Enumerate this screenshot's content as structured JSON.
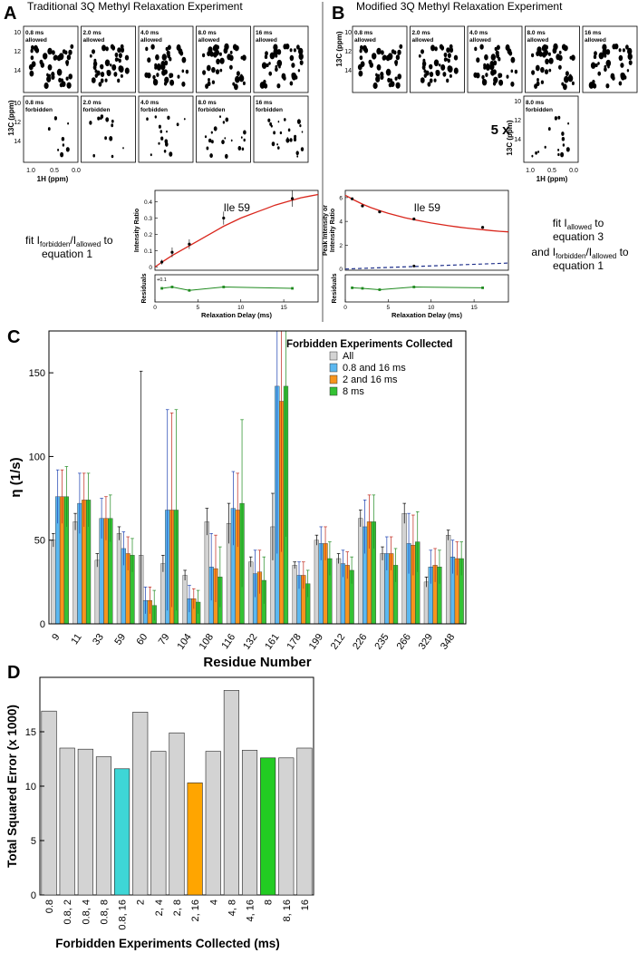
{
  "panels": {
    "a": {
      "letter": "A",
      "title": "Traditional 3Q Methyl Relaxation Experiment",
      "spectra_allowed": [
        {
          "time": "0.8 ms",
          "type": "allowed"
        },
        {
          "time": "2.0 ms",
          "type": "allowed"
        },
        {
          "time": "4.0 ms",
          "type": "allowed"
        },
        {
          "time": "8.0 ms",
          "type": "allowed"
        },
        {
          "time": "16 ms",
          "type": "allowed"
        }
      ],
      "spectra_forbidden": [
        {
          "time": "0.8 ms",
          "type": "forbidden"
        },
        {
          "time": "2.0 ms",
          "type": "forbidden"
        },
        {
          "time": "4.0 ms",
          "type": "forbidden"
        },
        {
          "time": "8.0 ms",
          "type": "forbidden"
        },
        {
          "time": "16 ms",
          "type": "forbidden"
        }
      ],
      "c_axis_label": "13C (ppm)",
      "c_ticks": [
        "10",
        "12",
        "14"
      ],
      "h_axis_label": "1H (ppm)",
      "h_ticks": [
        "1.0",
        "0.5",
        "0.0"
      ],
      "fit_text_1": "fit I",
      "fit_sub_1": "forbidden",
      "fit_text_2": "/I",
      "fit_sub_2": "allowed",
      "fit_text_3": " to",
      "fit_text_4": "equation 1",
      "plot_title": "Ile 59",
      "plot_ylabel": "Intensity Ratio",
      "plot_yticks": [
        "0",
        "0.1",
        "0.2",
        "0.3",
        "0.4"
      ],
      "res_ylabel": "Residuals",
      "res_tick": "+0.1",
      "xticks": [
        "0",
        "5",
        "10",
        "15"
      ],
      "xlabel": "Relaxation Delay (ms)"
    },
    "b": {
      "letter": "B",
      "title": "Modified 3Q Methyl Relaxation Experiment",
      "spectra_allowed": [
        {
          "time": "0.8 ms",
          "type": "allowed"
        },
        {
          "time": "2.0 ms",
          "type": "allowed"
        },
        {
          "time": "4.0 ms",
          "type": "allowed"
        },
        {
          "time": "8.0 ms",
          "type": "allowed"
        },
        {
          "time": "16 ms",
          "type": "allowed"
        }
      ],
      "spectra_forbidden": [
        {
          "time": "8.0 ms",
          "type": "forbidden"
        }
      ],
      "multiplier": "5 x",
      "c_axis_label": "13C (ppm)",
      "c_ticks": [
        "10",
        "12",
        "14"
      ],
      "h_axis_label": "1H (ppm)",
      "h_ticks": [
        "1.0",
        "0.5",
        "0.0"
      ],
      "fit_line_1a": "fit I",
      "fit_line_1b": "allowed",
      "fit_line_1c": " to",
      "fit_line_2": "equation 3",
      "fit_line_3a": "and I",
      "fit_line_3b": "forbidden",
      "fit_line_3c": "/I",
      "fit_line_3d": "allowed",
      "fit_line_3e": " to",
      "fit_line_4": "equation 1",
      "plot_title": "Ile 59",
      "plot_ylabel_1": "Peak Intensity or",
      "plot_ylabel_2": "Intensity Ratio",
      "plot_yticks": [
        "0",
        "2",
        "4",
        "6"
      ],
      "res_ylabel": "Residuals",
      "xticks": [
        "0",
        "5",
        "10",
        "15"
      ],
      "xlabel": "Relaxation Delay (ms)"
    },
    "c": {
      "letter": "C"
    },
    "d": {
      "letter": "D"
    }
  },
  "colors": {
    "all": "#d3d3d3",
    "s08_16": "#5cb8f0",
    "s2_16": "#f7941d",
    "s8": "#34c234",
    "fit_red": "#d9261c",
    "fit_blue": "#1e2f8a",
    "residual_green": "#1f8a1f",
    "d_highlight_cyan": "#3ed6d6",
    "d_highlight_orange": "#ffa500",
    "d_highlight_green": "#22cc22"
  },
  "chart_data": [
    {
      "type": "line",
      "title": "Ile 59",
      "panel": "A",
      "xlabel": "Relaxation Delay (ms)",
      "ylabel": "Intensity Ratio",
      "xlim": [
        0,
        19
      ],
      "ylim": [
        -0.02,
        0.47
      ],
      "points": {
        "x": [
          0.8,
          2,
          4,
          8,
          16
        ],
        "y": [
          0.03,
          0.09,
          0.14,
          0.3,
          0.42
        ],
        "err": [
          0.015,
          0.03,
          0.03,
          0.04,
          0.05
        ]
      },
      "fit": {
        "x": [
          0,
          1,
          2,
          3,
          4,
          5,
          6,
          7,
          8,
          9,
          10,
          11,
          12,
          13,
          14,
          15,
          16,
          17,
          18,
          19
        ],
        "y": [
          0.0,
          0.036,
          0.07,
          0.1,
          0.13,
          0.16,
          0.19,
          0.22,
          0.25,
          0.275,
          0.3,
          0.32,
          0.34,
          0.36,
          0.38,
          0.395,
          0.41,
          0.425,
          0.435,
          0.445
        ]
      },
      "residuals": {
        "x": [
          0.8,
          2,
          4,
          8,
          16
        ],
        "y": [
          0.0,
          0.01,
          -0.015,
          0.01,
          0.0
        ],
        "ylim": [
          -0.1,
          0.1
        ]
      }
    },
    {
      "type": "line",
      "title": "Ile 59",
      "panel": "B",
      "xlabel": "Relaxation Delay (ms)",
      "ylabel": "Peak Intensity or Intensity Ratio",
      "xlim": [
        0,
        19
      ],
      "ylim": [
        -0.1,
        6.6
      ],
      "allowed_points": {
        "x": [
          0.8,
          2,
          4,
          8,
          16
        ],
        "y": [
          5.9,
          5.3,
          4.8,
          4.2,
          3.5
        ]
      },
      "allowed_fit": {
        "x": [
          0,
          1,
          2,
          3,
          4,
          5,
          6,
          7,
          8,
          9,
          10,
          11,
          12,
          13,
          14,
          15,
          16,
          17,
          18,
          19
        ],
        "y": [
          6.2,
          5.8,
          5.45,
          5.15,
          4.9,
          4.68,
          4.48,
          4.3,
          4.14,
          4.0,
          3.87,
          3.75,
          3.64,
          3.54,
          3.45,
          3.37,
          3.3,
          3.23,
          3.17,
          3.12
        ]
      },
      "forbidden_points": {
        "x": [
          8
        ],
        "y": [
          0.25
        ]
      },
      "forbidden_fit": {
        "x": [
          0,
          19
        ],
        "y": [
          0.0,
          0.5
        ]
      },
      "residuals": {
        "x": [
          0.8,
          2,
          4,
          8,
          16
        ],
        "y": [
          0.02,
          0.0,
          -0.05,
          0.05,
          0.02
        ],
        "ylim": [
          -0.5,
          0.5
        ]
      }
    },
    {
      "type": "bar",
      "panel": "C",
      "title": "",
      "xlabel": "Residue Number",
      "ylabel": "η (1/s)",
      "ylim": [
        0,
        175
      ],
      "yticks": [
        0,
        50,
        100,
        150
      ],
      "legend_title": "Forbidden Experiments Collected",
      "legend_position": "top-right",
      "categories": [
        "9",
        "11",
        "33",
        "59",
        "60",
        "79",
        "104",
        "108",
        "116",
        "132",
        "161",
        "178",
        "199",
        "212",
        "226",
        "235",
        "266",
        "329",
        "348"
      ],
      "series": [
        {
          "name": "All",
          "values": [
            50,
            61,
            38,
            54,
            41,
            36,
            29,
            61,
            60,
            37,
            58,
            35,
            50,
            39,
            63,
            42,
            66,
            25,
            53
          ],
          "err": [
            4,
            5,
            4,
            4,
            110,
            5,
            3,
            8,
            12,
            3,
            20,
            2,
            3,
            3,
            5,
            4,
            6,
            3,
            3
          ]
        },
        {
          "name": "0.8 and 16 ms",
          "values": [
            76,
            72,
            63,
            45,
            14,
            68,
            15,
            34,
            69,
            30,
            142,
            29,
            48,
            36,
            58,
            42,
            48,
            34,
            40
          ],
          "err": [
            16,
            18,
            12,
            10,
            8,
            60,
            8,
            20,
            22,
            14,
            100,
            8,
            10,
            8,
            16,
            10,
            18,
            10,
            10
          ]
        },
        {
          "name": "2 and 16 ms",
          "values": [
            76,
            74,
            63,
            42,
            14,
            68,
            15,
            33,
            68,
            31,
            133,
            29,
            48,
            35,
            61,
            42,
            47,
            35,
            39
          ],
          "err": [
            16,
            16,
            13,
            10,
            8,
            58,
            6,
            20,
            22,
            13,
            90,
            8,
            10,
            8,
            16,
            10,
            18,
            10,
            10
          ]
        },
        {
          "name": "8 ms",
          "values": [
            76,
            74,
            63,
            41,
            11,
            68,
            13,
            28,
            72,
            26,
            142,
            24,
            39,
            32,
            61,
            35,
            49,
            34,
            39
          ],
          "err": [
            18,
            16,
            14,
            10,
            9,
            60,
            7,
            18,
            50,
            14,
            90,
            8,
            10,
            8,
            16,
            10,
            18,
            10,
            10
          ]
        }
      ]
    },
    {
      "type": "bar",
      "panel": "D",
      "title": "",
      "xlabel": "Forbidden Experiments Collected (ms)",
      "ylabel": "Total Squared Error (x 1000)",
      "ylim": [
        0,
        20
      ],
      "yticks": [
        0,
        5,
        10,
        15
      ],
      "categories": [
        "0.8",
        "0.8, 2",
        "0.8, 4",
        "0.8, 8",
        "0.8, 16",
        "2",
        "2, 4",
        "2, 8",
        "2, 16",
        "4",
        "4, 8",
        "4, 16",
        "8",
        "8, 16",
        "16"
      ],
      "values": [
        16.9,
        13.5,
        13.4,
        12.7,
        11.6,
        16.8,
        13.2,
        14.9,
        10.3,
        13.2,
        18.8,
        13.3,
        12.6,
        12.6,
        13.5
      ],
      "bar_colors": [
        "#d3d3d3",
        "#d3d3d3",
        "#d3d3d3",
        "#d3d3d3",
        "#3ed6d6",
        "#d3d3d3",
        "#d3d3d3",
        "#d3d3d3",
        "#ffa500",
        "#d3d3d3",
        "#d3d3d3",
        "#d3d3d3",
        "#22cc22",
        "#d3d3d3",
        "#d3d3d3"
      ]
    }
  ]
}
